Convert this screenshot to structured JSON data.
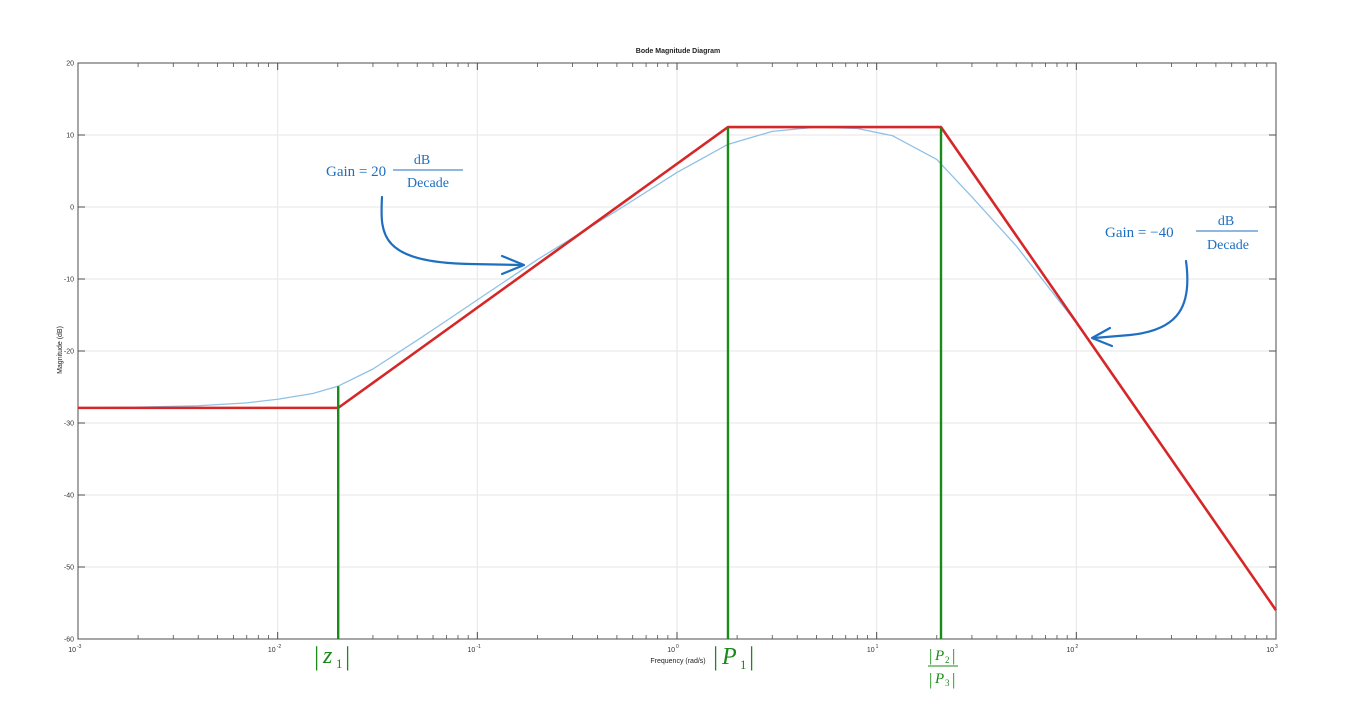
{
  "chart_data": {
    "type": "line",
    "title": "Bode Magnitude Diagram",
    "xlabel": "Frequency (rad/s)",
    "ylabel": "Magnitude (dB)",
    "xscale": "log",
    "xlim": [
      0.001,
      1000
    ],
    "ylim": [
      -60,
      20
    ],
    "grid": true,
    "x_ticks": [
      {
        "value": 0.001,
        "base": "10",
        "exp": "-3"
      },
      {
        "value": 0.01,
        "base": "10",
        "exp": "-2"
      },
      {
        "value": 0.1,
        "base": "10",
        "exp": "-1"
      },
      {
        "value": 1,
        "base": "10",
        "exp": "0"
      },
      {
        "value": 10,
        "base": "10",
        "exp": "1"
      },
      {
        "value": 100,
        "base": "10",
        "exp": "2"
      },
      {
        "value": 1000,
        "base": "10",
        "exp": "3"
      }
    ],
    "y_ticks": [
      20,
      10,
      0,
      -10,
      -20,
      -30,
      -40,
      -50,
      -60
    ],
    "series": [
      {
        "color": "#8fc1e6",
        "x": [
          0.001,
          0.002,
          0.004,
          0.007,
          0.01,
          0.015,
          0.02,
          0.03,
          0.05,
          0.07,
          0.1,
          0.2,
          0.5,
          1,
          1.8,
          3,
          5,
          8,
          12,
          20,
          30,
          50,
          100,
          200,
          500,
          1000
        ],
        "y": [
          -27.9,
          -27.8,
          -27.6,
          -27.2,
          -26.7,
          -25.9,
          -24.9,
          -22.5,
          -18.5,
          -15.8,
          -12.9,
          -7.3,
          -0.5,
          4.8,
          8.7,
          10.5,
          11.1,
          10.9,
          9.9,
          6.6,
          1.4,
          -5.4,
          -16.1,
          -28.1,
          -44,
          -56
        ]
      },
      {
        "color": "#d62728",
        "x": [
          0.001,
          0.0201,
          1.8,
          21,
          1000
        ],
        "y": [
          -27.9,
          -27.9,
          11.1,
          11.1,
          -56
        ]
      }
    ],
    "vertical_markers": [
      {
        "x": 0.0201,
        "y_top": -24.9,
        "color": "#1a8a1a"
      },
      {
        "x": 1.8,
        "y_top": 11.1,
        "color": "#1a8a1a"
      },
      {
        "x": 21,
        "y_top": 11.1,
        "color": "#1a8a1a"
      }
    ],
    "marker_labels": {
      "z1": "z",
      "z1_sub": "1",
      "p1": "P",
      "p1_sub": "1",
      "p2": "P",
      "p2_sub": "2",
      "p3": "P",
      "p3_sub": "3"
    },
    "annotations": [
      {
        "prefix": "Gain = 20",
        "numerator": "dB",
        "denominator": "Decade",
        "color": "#1f6fc0"
      },
      {
        "prefix": "Gain = −40",
        "numerator": "dB",
        "denominator": "Decade",
        "color": "#1f6fc0"
      }
    ]
  }
}
